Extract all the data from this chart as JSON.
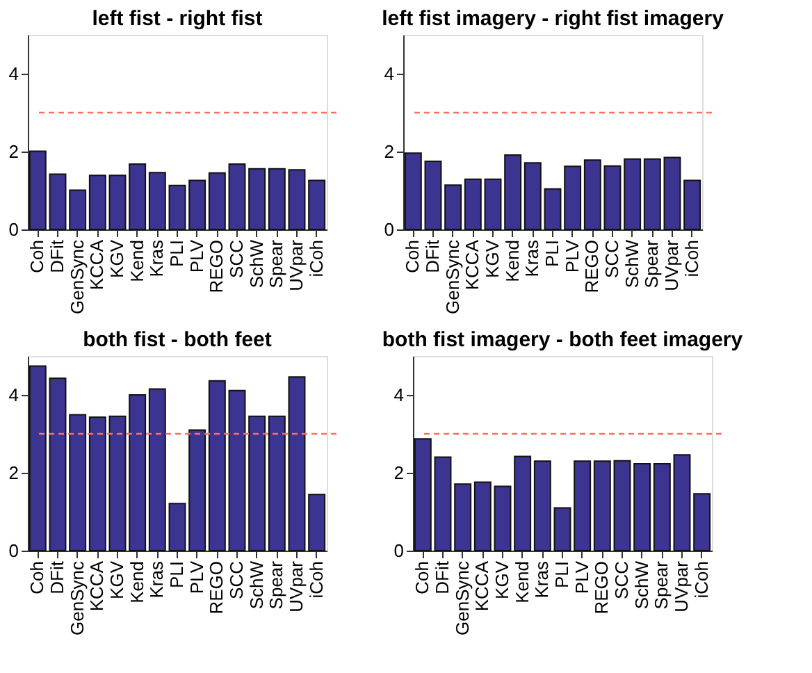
{
  "chart_data": [
    {
      "type": "bar",
      "title": "left fist - right fist",
      "categories": [
        "Coh",
        "DFit",
        "GenSync",
        "KCCA",
        "KGV",
        "Kend",
        "Kras",
        "PLI",
        "PLV",
        "REGO",
        "SCC",
        "SchW",
        "Spear",
        "UVpar",
        "iCoh"
      ],
      "color": "#3b3591",
      "values": [
        2.01,
        1.42,
        1.01,
        1.39,
        1.39,
        1.68,
        1.46,
        1.13,
        1.26,
        1.45,
        1.68,
        1.56,
        1.56,
        1.53,
        1.26
      ],
      "ylim": [
        0,
        5
      ],
      "yticks": [
        0,
        2,
        4
      ],
      "grid": false,
      "ref_lines": [
        {
          "axis": "y",
          "value": 3,
          "color": "#ff6f61",
          "line_style": "dashed"
        }
      ]
    },
    {
      "type": "bar",
      "title": "left fist imagery - right fist imagery",
      "categories": [
        "Coh",
        "DFit",
        "GenSync",
        "KCCA",
        "KGV",
        "Kend",
        "Kras",
        "PLI",
        "PLV",
        "REGO",
        "SCC",
        "SchW",
        "Spear",
        "UVpar",
        "iCoh"
      ],
      "color": "#3b3591",
      "values": [
        1.96,
        1.75,
        1.14,
        1.29,
        1.29,
        1.91,
        1.71,
        1.04,
        1.62,
        1.78,
        1.63,
        1.81,
        1.81,
        1.85,
        1.26
      ],
      "ylim": [
        0,
        5
      ],
      "yticks": [
        0,
        2,
        4
      ],
      "grid": false,
      "ref_lines": [
        {
          "axis": "y",
          "value": 3,
          "color": "#ff6f61",
          "line_style": "dashed"
        }
      ]
    },
    {
      "type": "bar",
      "title": "both fist - both feet",
      "categories": [
        "Coh",
        "DFit",
        "GenSync",
        "KCCA",
        "KGV",
        "Kend",
        "Kras",
        "PLI",
        "PLV",
        "REGO",
        "SCC",
        "SchW",
        "Spear",
        "UVpar",
        "iCoh"
      ],
      "color": "#3b3591",
      "values": [
        4.74,
        4.43,
        3.49,
        3.43,
        3.45,
        4.0,
        4.15,
        1.21,
        3.1,
        4.36,
        4.11,
        3.45,
        3.45,
        4.46,
        1.44
      ],
      "ylim": [
        0,
        5
      ],
      "yticks": [
        0,
        2,
        4
      ],
      "grid": false,
      "ref_lines": [
        {
          "axis": "y",
          "value": 3,
          "color": "#ff6f61",
          "line_style": "dashed"
        }
      ]
    },
    {
      "type": "bar",
      "title": "both fist imagery - both feet imagery",
      "categories": [
        "Coh",
        "DFit",
        "GenSync",
        "KCCA",
        "KGV",
        "Kend",
        "Kras",
        "PLI",
        "PLV",
        "REGO",
        "SCC",
        "SchW",
        "Spear",
        "UVpar",
        "iCoh"
      ],
      "color": "#3b3591",
      "values": [
        2.87,
        2.4,
        1.71,
        1.76,
        1.65,
        2.42,
        2.3,
        1.1,
        2.3,
        2.3,
        2.31,
        2.23,
        2.23,
        2.46,
        1.46
      ],
      "ylim": [
        0,
        5
      ],
      "yticks": [
        0,
        2,
        4
      ],
      "grid": false,
      "ref_lines": [
        {
          "axis": "y",
          "value": 3,
          "color": "#ff6f61",
          "line_style": "dashed"
        }
      ]
    }
  ]
}
